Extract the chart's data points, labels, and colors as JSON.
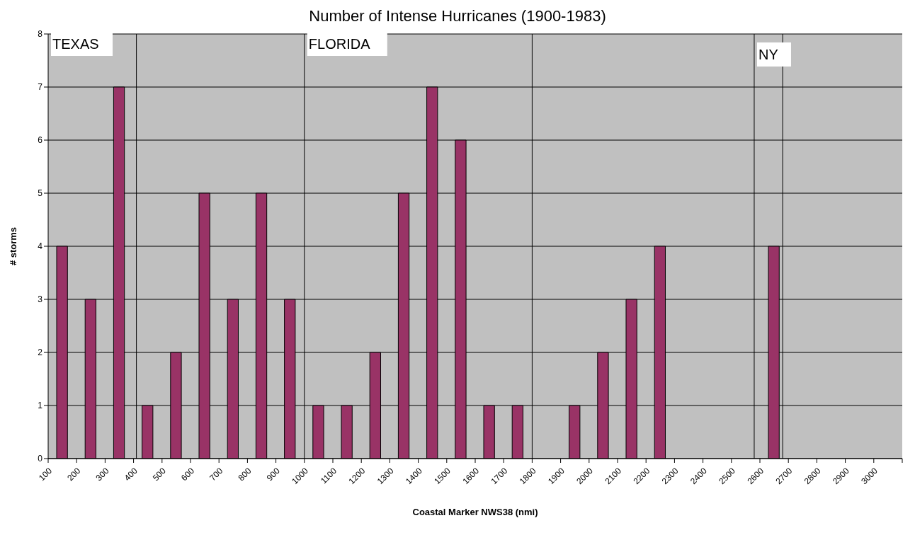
{
  "chart_data": {
    "type": "histogram",
    "title": "Number of Intense Hurricanes (1900-1983)",
    "xlabel": "Coastal Marker NWS38 (nmi)",
    "ylabel": "# storms",
    "bins": [
      100,
      200,
      300,
      400,
      500,
      600,
      700,
      800,
      900,
      1000,
      1100,
      1200,
      1300,
      1400,
      1500,
      1600,
      1700,
      1800,
      1900,
      2000,
      2100,
      2200,
      2300,
      2400,
      2500,
      2600,
      2700,
      2800,
      2900,
      3000,
      3100
    ],
    "values": [
      4,
      3,
      7,
      1,
      2,
      5,
      3,
      5,
      3,
      1,
      1,
      2,
      5,
      7,
      6,
      1,
      1,
      0,
      1,
      2,
      3,
      4,
      0,
      0,
      0,
      4,
      0,
      0,
      0,
      0
    ],
    "color": "#993366",
    "xlim": [
      100,
      3100
    ],
    "xticks": [
      100,
      200,
      300,
      400,
      500,
      600,
      700,
      800,
      900,
      1000,
      1100,
      1200,
      1300,
      1400,
      1500,
      1600,
      1700,
      1800,
      1900,
      2000,
      2100,
      2200,
      2300,
      2400,
      2500,
      2600,
      2700,
      2800,
      2900,
      3000,
      {
        "value": 3100,
        "label": null
      }
    ],
    "ylim": [
      0,
      8
    ],
    "yticks": [
      0,
      1,
      2,
      3,
      4,
      5,
      6,
      7,
      8
    ],
    "grid": "y",
    "ref_lines": [
      {
        "axis": "x",
        "value": 410,
        "color": "#000000"
      },
      {
        "axis": "x",
        "value": 1000,
        "color": "#000000"
      },
      {
        "axis": "x",
        "value": 1800,
        "color": "#000000"
      },
      {
        "axis": "x",
        "value": 2580,
        "color": "#000000"
      },
      {
        "axis": "x",
        "value": 2680,
        "color": "#000000"
      }
    ],
    "annotations": [
      "TEXAS",
      "FLORIDA",
      "NY"
    ]
  }
}
